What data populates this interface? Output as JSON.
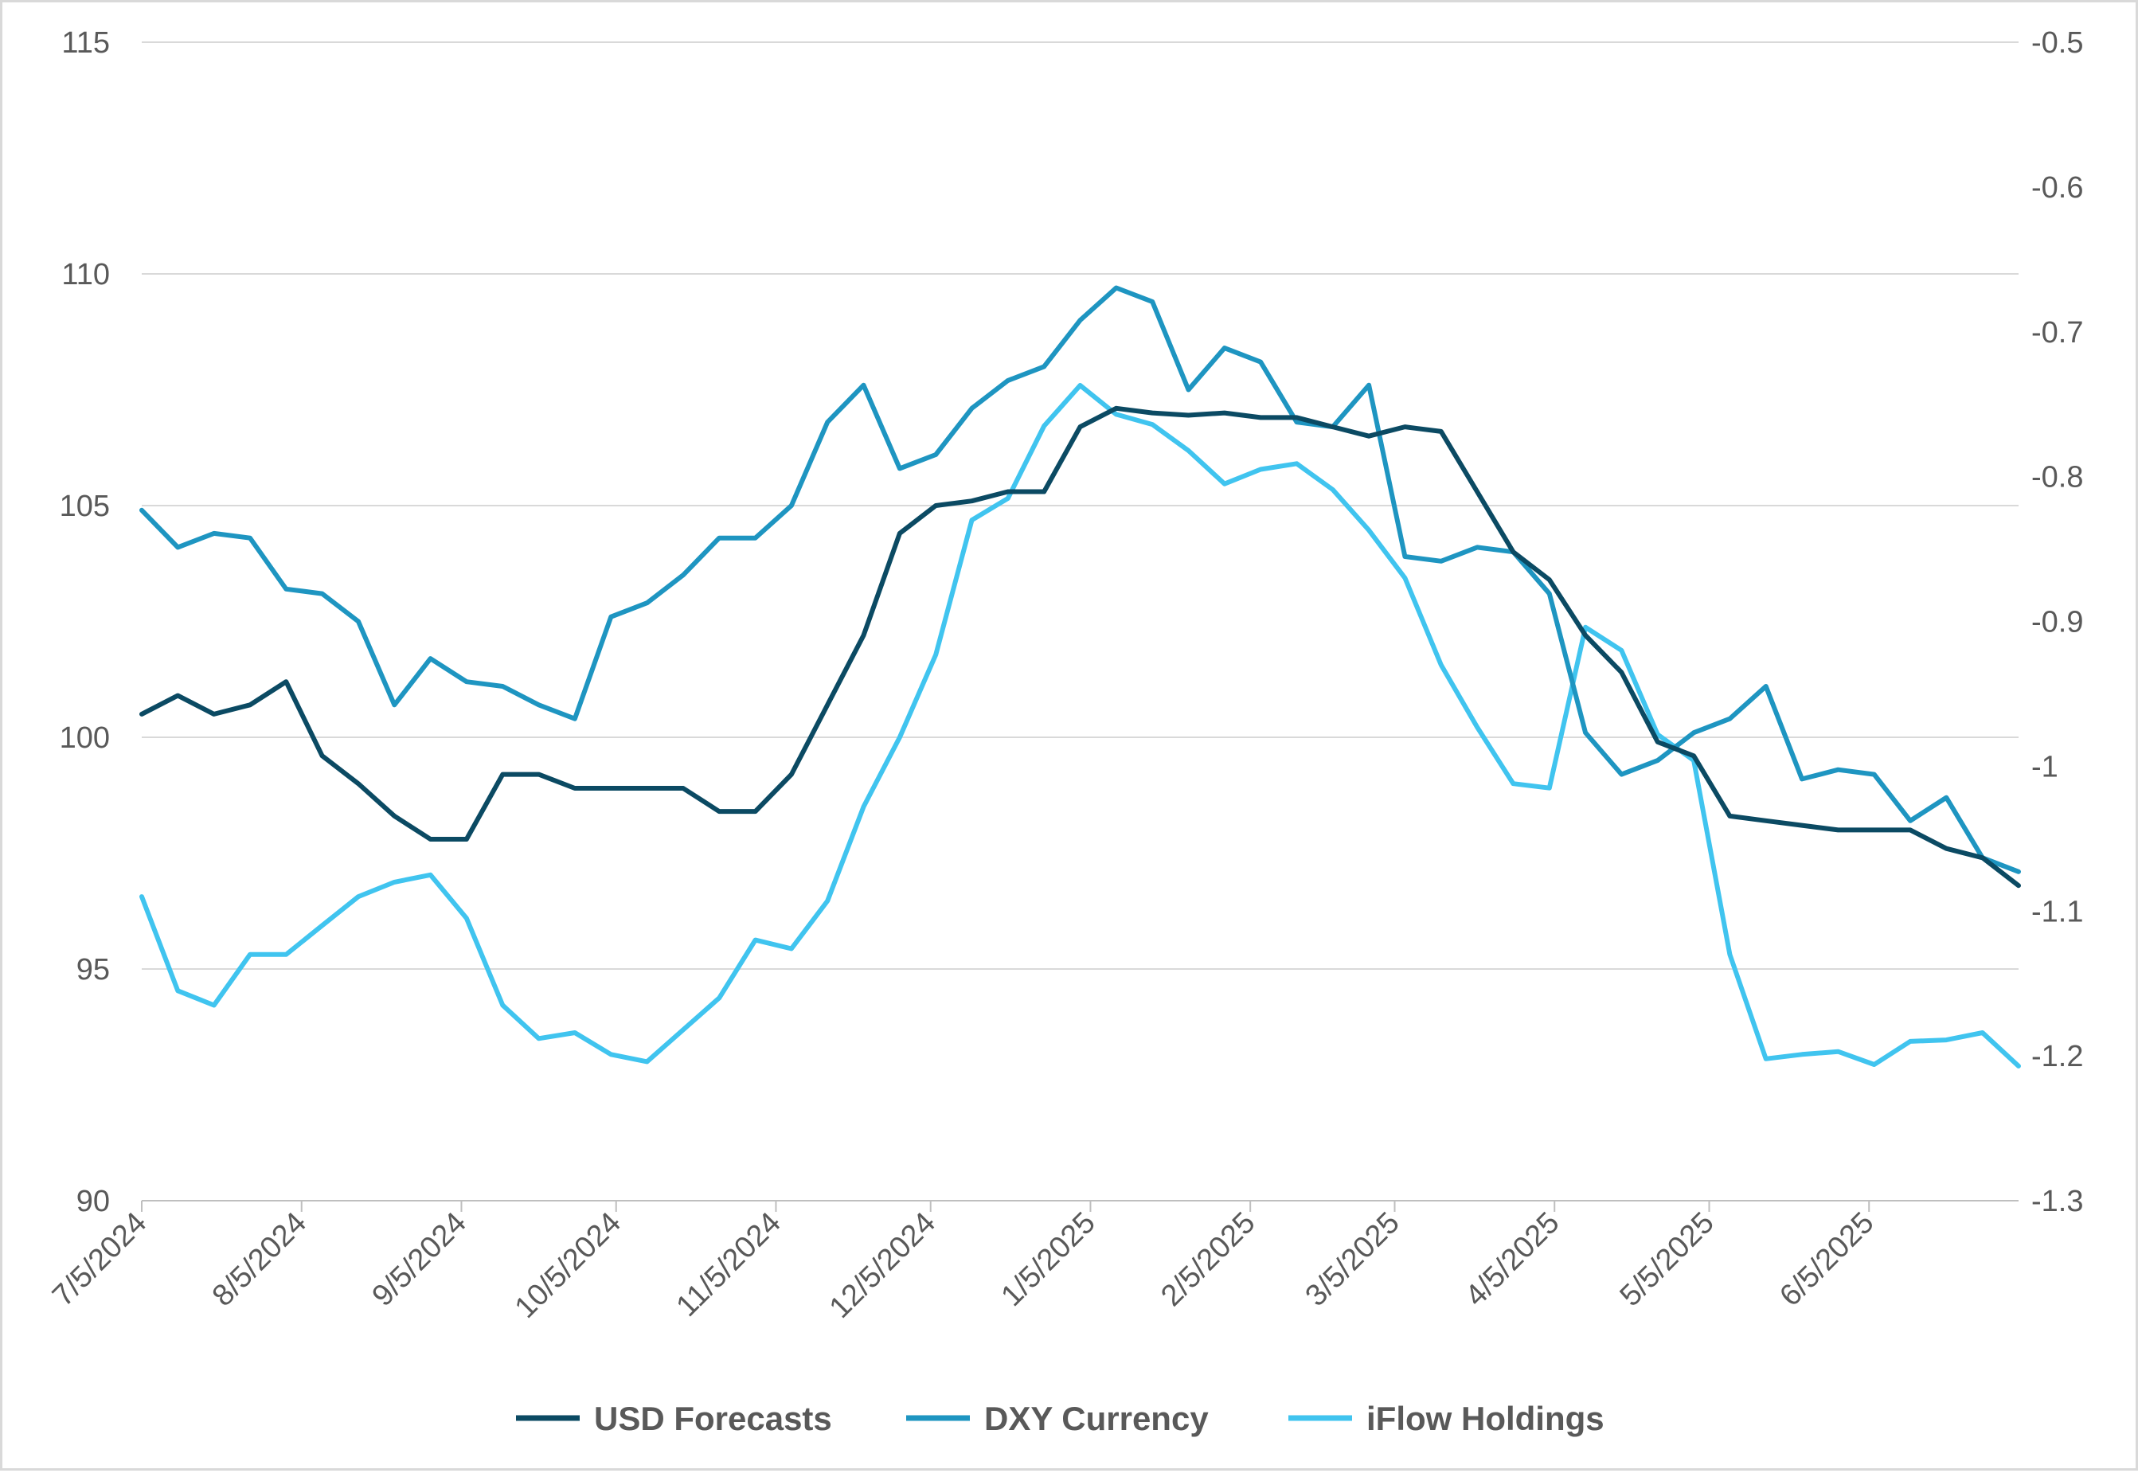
{
  "chart_data": {
    "type": "line",
    "title": "",
    "xlabel": "",
    "ylabel": "",
    "y2label": "",
    "grid": true,
    "legend_position": "bottom",
    "ylim": [
      90,
      115
    ],
    "y_ticks": [
      90,
      95,
      100,
      105,
      110,
      115
    ],
    "y_tick_labels": [
      "90",
      "95",
      "100",
      "105",
      "110",
      "115"
    ],
    "y2lim": [
      -1.3,
      -0.5
    ],
    "y2_ticks": [
      -1.3,
      -1.2,
      -1.1,
      -1.0,
      -0.9,
      -0.8,
      -0.7,
      -0.6,
      -0.5
    ],
    "y2_tick_labels": [
      "-1.3",
      "-1.2",
      "-1.1",
      "-1",
      "-0.9",
      "-0.8",
      "-0.7",
      "-0.6",
      "-0.5"
    ],
    "x_tick_labels": [
      "7/5/2024",
      "8/5/2024",
      "9/5/2024",
      "10/5/2024",
      "11/5/2024",
      "12/5/2024",
      "1/5/2025",
      "2/5/2025",
      "3/5/2025",
      "4/5/2025",
      "5/5/2025",
      "6/5/2025"
    ],
    "x_start": "2024-07-05",
    "x": [
      "2024-07-05",
      "2024-07-12",
      "2024-07-19",
      "2024-07-26",
      "2024-08-02",
      "2024-08-09",
      "2024-08-16",
      "2024-08-23",
      "2024-08-30",
      "2024-09-06",
      "2024-09-13",
      "2024-09-20",
      "2024-09-27",
      "2024-10-04",
      "2024-10-11",
      "2024-10-18",
      "2024-10-25",
      "2024-11-01",
      "2024-11-08",
      "2024-11-15",
      "2024-11-22",
      "2024-11-29",
      "2024-12-06",
      "2024-12-13",
      "2024-12-20",
      "2024-12-27",
      "2025-01-03",
      "2025-01-10",
      "2025-01-17",
      "2025-01-24",
      "2025-01-31",
      "2025-02-07",
      "2025-02-14",
      "2025-02-21",
      "2025-02-28",
      "2025-03-07",
      "2025-03-14",
      "2025-03-21",
      "2025-03-28",
      "2025-04-04",
      "2025-04-11",
      "2025-04-18",
      "2025-04-25",
      "2025-05-02",
      "2025-05-09",
      "2025-05-16",
      "2025-05-23",
      "2025-05-30",
      "2025-06-06",
      "2025-06-13",
      "2025-06-20",
      "2025-06-27",
      "2025-07-04"
    ],
    "series": [
      {
        "name": "USD Forecasts",
        "axis": "left",
        "color": "#0b4a63",
        "values": [
          100.5,
          100.9,
          100.5,
          100.7,
          101.2,
          99.6,
          99.0,
          98.3,
          97.8,
          97.8,
          99.2,
          99.2,
          98.9,
          98.9,
          98.9,
          98.9,
          98.4,
          98.4,
          99.2,
          100.7,
          102.2,
          104.4,
          105.0,
          105.1,
          105.3,
          105.3,
          106.7,
          107.1,
          107.0,
          106.95,
          107.0,
          106.9,
          106.9,
          106.7,
          106.5,
          106.7,
          106.6,
          105.3,
          104.0,
          103.4,
          102.2,
          101.4,
          99.9,
          99.6,
          98.3,
          98.2,
          98.1,
          98.0,
          98.0,
          98.0,
          97.6,
          97.4,
          96.8
        ]
      },
      {
        "name": "DXY Currency",
        "axis": "left",
        "color": "#1e95c1",
        "values": [
          104.9,
          104.1,
          104.4,
          104.3,
          103.2,
          103.1,
          102.5,
          100.7,
          101.7,
          101.2,
          101.1,
          100.7,
          100.4,
          102.6,
          102.9,
          103.5,
          104.3,
          104.3,
          105.0,
          106.8,
          107.6,
          105.8,
          106.1,
          107.1,
          107.7,
          108.0,
          109.0,
          109.7,
          109.4,
          107.5,
          108.4,
          108.1,
          106.8,
          106.7,
          107.6,
          103.9,
          103.8,
          104.1,
          104.0,
          103.1,
          100.1,
          99.2,
          99.5,
          100.1,
          100.4,
          101.1,
          99.1,
          99.3,
          99.2,
          98.2,
          98.7,
          97.4,
          97.1
        ]
      },
      {
        "name": "iFlow Holdings",
        "axis": "right",
        "color": "#40c4ef",
        "values": [
          -1.09,
          -1.155,
          -1.165,
          -1.13,
          -1.13,
          -1.11,
          -1.09,
          -1.08,
          -1.075,
          -1.105,
          -1.165,
          -1.188,
          -1.184,
          -1.199,
          -1.204,
          -1.182,
          -1.16,
          -1.12,
          -1.126,
          -1.093,
          -1.028,
          -0.98,
          -0.923,
          -0.83,
          -0.815,
          -0.765,
          -0.737,
          -0.757,
          -0.764,
          -0.782,
          -0.805,
          -0.795,
          -0.791,
          -0.809,
          -0.837,
          -0.87,
          -0.93,
          -0.973,
          -1.012,
          -1.015,
          -0.904,
          -0.92,
          -0.978,
          -0.996,
          -1.13,
          -1.202,
          -1.199,
          -1.197,
          -1.206,
          -1.19,
          -1.189,
          -1.184,
          -1.207
        ]
      }
    ]
  }
}
